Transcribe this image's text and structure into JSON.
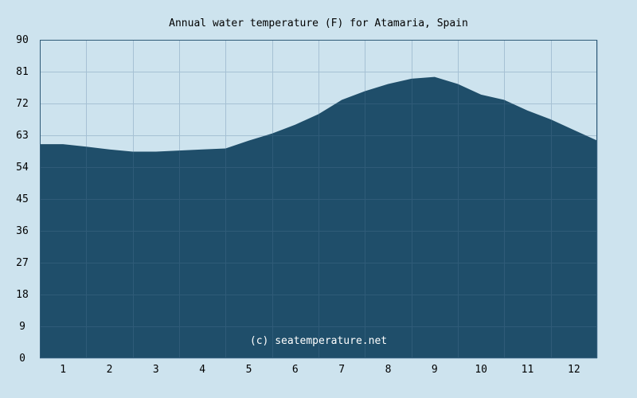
{
  "chart_data": {
    "type": "area",
    "title": "Annual water temperature (F) for Atamaria, Spain",
    "xlabel": "",
    "ylabel": "",
    "ylim": [
      0,
      90
    ],
    "y_ticks": [
      "0",
      "9",
      "18",
      "27",
      "36",
      "45",
      "54",
      "63",
      "72",
      "81",
      "90"
    ],
    "categories": [
      "1",
      "2",
      "3",
      "4",
      "5",
      "6",
      "7",
      "8",
      "9",
      "10",
      "11",
      "12"
    ],
    "grid": true,
    "watermark": "(c) seatemperature.net",
    "colors": {
      "background": "#cde3ee",
      "fill": "#1f4e6a",
      "grid_light": "#a6c1d4",
      "grid_dark": "#2f5b78"
    },
    "x_values": [
      0.0,
      0.5,
      1.0,
      1.5,
      2.0,
      2.5,
      3.0,
      3.5,
      4.0,
      4.5,
      5.0,
      5.5,
      6.0,
      6.5,
      7.0,
      7.5,
      8.0,
      8.5,
      9.0,
      9.5,
      10.0,
      10.5,
      11.0,
      11.5,
      12.0
    ],
    "values": [
      60.5,
      60.5,
      59.8,
      59.0,
      58.4,
      58.4,
      58.7,
      59.0,
      59.3,
      61.5,
      63.5,
      66.0,
      69.0,
      73.0,
      75.5,
      77.5,
      79.0,
      79.5,
      77.5,
      74.5,
      73.0,
      70.0,
      67.5,
      64.5,
      61.5
    ]
  }
}
